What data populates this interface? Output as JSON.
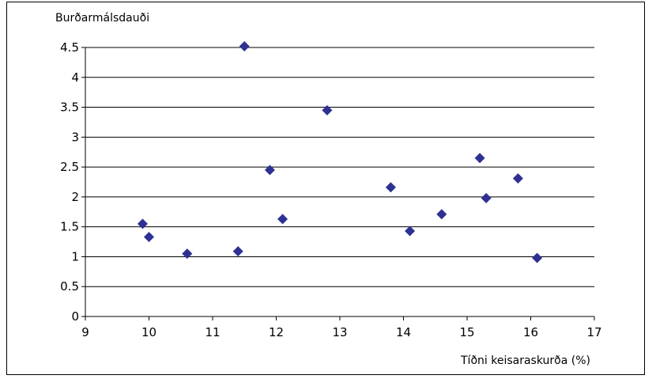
{
  "chart_data": {
    "type": "scatter",
    "title": "",
    "ylabel": "Burðarmálsdauði",
    "xlabel": "Tíðni keisaraskurða (%)",
    "xlim": [
      9,
      17
    ],
    "ylim": [
      0,
      4.5
    ],
    "x_ticks": [
      "9",
      "10",
      "11",
      "12",
      "13",
      "14",
      "15",
      "16",
      "17"
    ],
    "y_ticks": [
      "0",
      "0.5",
      "1",
      "1.5",
      "2",
      "2.5",
      "3",
      "3.5",
      "4",
      "4.5"
    ],
    "grid": "horizontal",
    "legend": "none",
    "marker": "diamond",
    "marker_color": "#2E3192",
    "series": [
      {
        "points": [
          {
            "x": 9.9,
            "y": 1.55
          },
          {
            "x": 10.0,
            "y": 1.33
          },
          {
            "x": 10.6,
            "y": 1.05
          },
          {
            "x": 11.4,
            "y": 1.09
          },
          {
            "x": 11.5,
            "y": 4.52
          },
          {
            "x": 11.9,
            "y": 2.45
          },
          {
            "x": 12.1,
            "y": 1.63
          },
          {
            "x": 12.8,
            "y": 3.45
          },
          {
            "x": 13.8,
            "y": 2.16
          },
          {
            "x": 14.1,
            "y": 1.43
          },
          {
            "x": 14.6,
            "y": 1.71
          },
          {
            "x": 15.2,
            "y": 2.65
          },
          {
            "x": 15.3,
            "y": 1.98
          },
          {
            "x": 15.8,
            "y": 2.31
          },
          {
            "x": 16.1,
            "y": 0.98
          }
        ]
      }
    ]
  }
}
